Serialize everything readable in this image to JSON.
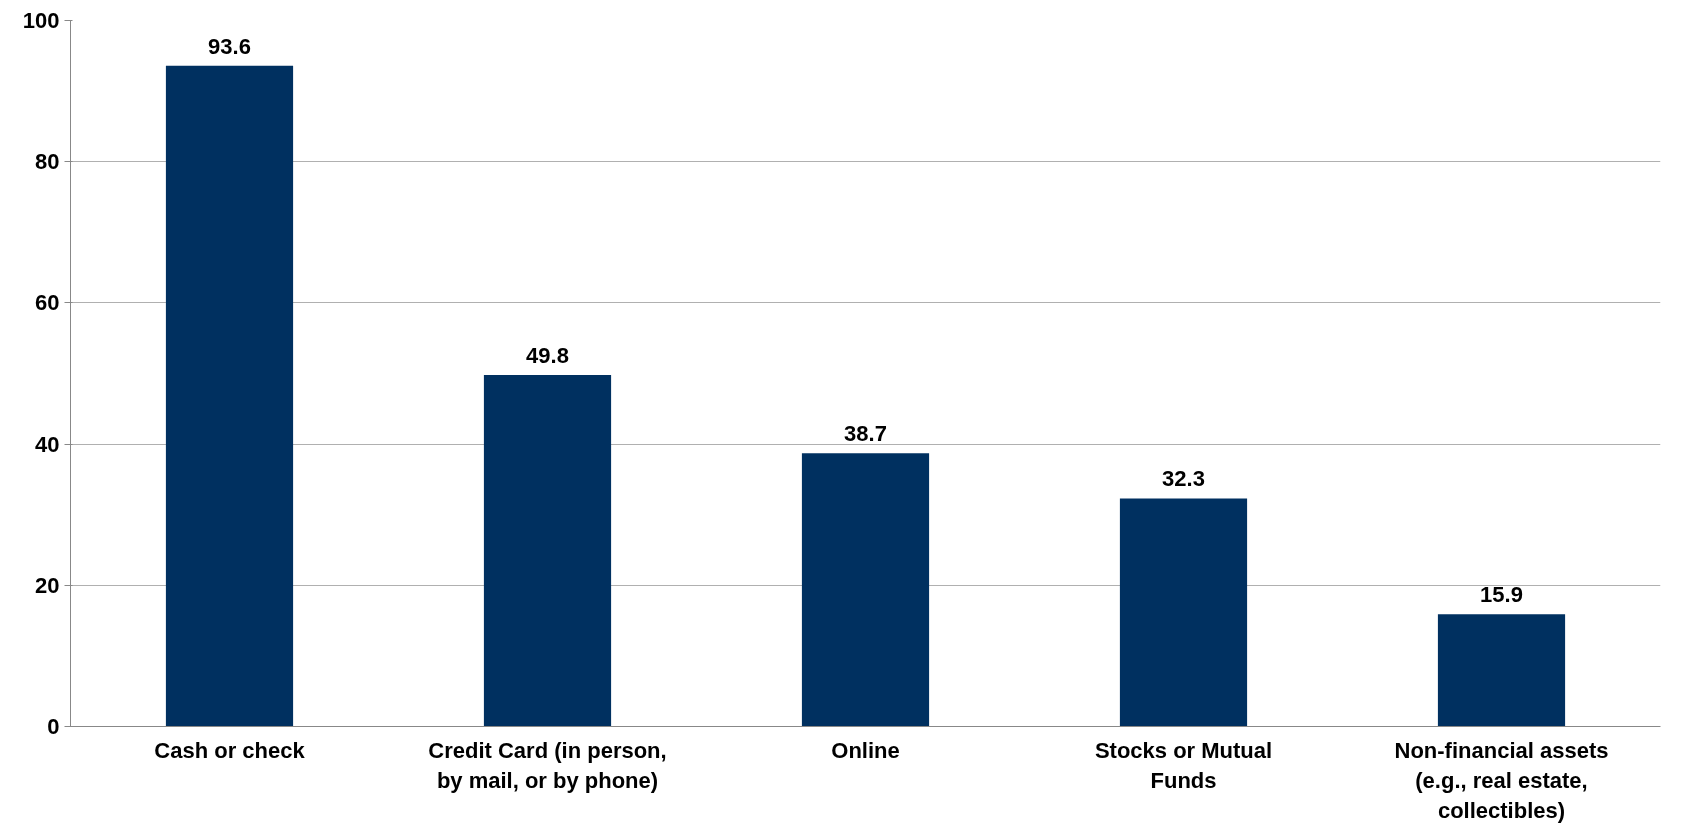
{
  "chart_data": {
    "type": "bar",
    "categories": [
      "Cash or check",
      "Credit Card (in person,\nby mail, or by phone)",
      "Online",
      "Stocks or Mutual\nFunds",
      "Non-financial assets\n(e.g., real estate,\ncollectibles)"
    ],
    "values": [
      93.6,
      49.8,
      38.7,
      32.3,
      15.9
    ],
    "color": "#003060",
    "ylim": [
      0,
      100
    ],
    "yticks": [
      0,
      20,
      40,
      60,
      80,
      100
    ],
    "grid": "y",
    "data_labels": true
  }
}
